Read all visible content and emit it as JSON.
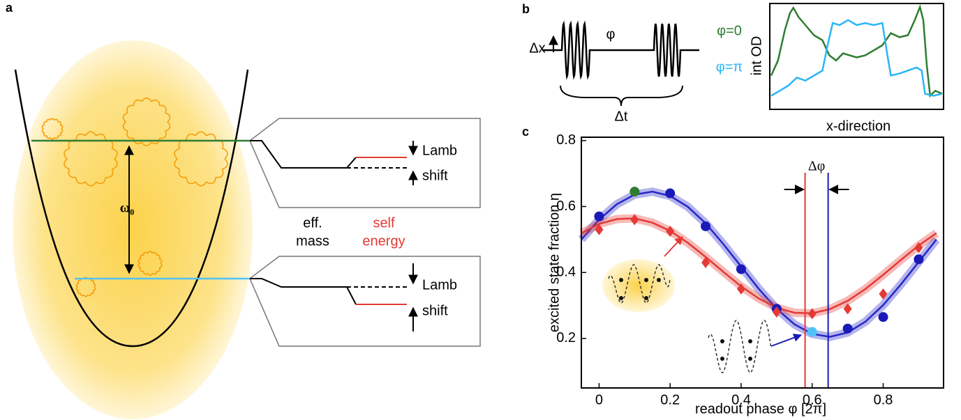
{
  "panel_a": {
    "label": "a",
    "omega": "ω₀",
    "upper": {
      "label_1": "Lamb",
      "label_2": "shift"
    },
    "lower": {
      "label_1": "Lamb",
      "label_2": "shift"
    },
    "eff_mass": [
      "eff.",
      "mass"
    ],
    "self_energy": [
      "self",
      "energy"
    ]
  },
  "panel_b": {
    "label": "b",
    "delta_x": "Δx",
    "phi": "φ",
    "delta_t": "Δt",
    "phi0": "φ=0",
    "phipi": "φ=π",
    "inset": {
      "ylabel": "int OD",
      "xlabel": "x-direction",
      "series": [
        {
          "color": "#2e7d32",
          "x": [
            0,
            0.04,
            0.08,
            0.11,
            0.13,
            0.16,
            0.2,
            0.25,
            0.3,
            0.34,
            0.38,
            0.42,
            0.46,
            0.5,
            0.55,
            0.6,
            0.65,
            0.7,
            0.75,
            0.8,
            0.84,
            0.87,
            0.89,
            0.91,
            0.93,
            0.96,
            1
          ],
          "values": [
            0.3,
            0.45,
            0.75,
            0.92,
            0.97,
            0.88,
            0.8,
            0.7,
            0.65,
            0.5,
            0.45,
            0.52,
            0.5,
            0.48,
            0.5,
            0.55,
            0.6,
            0.72,
            0.68,
            0.7,
            0.85,
            0.98,
            0.85,
            0.4,
            0.1,
            0.15,
            0.12
          ]
        },
        {
          "color": "#29b6f6",
          "x": [
            0,
            0.05,
            0.1,
            0.15,
            0.2,
            0.25,
            0.3,
            0.33,
            0.36,
            0.4,
            0.45,
            0.5,
            0.55,
            0.6,
            0.65,
            0.68,
            0.7,
            0.75,
            0.8,
            0.85,
            0.88,
            0.9,
            0.95,
            1
          ],
          "values": [
            0.1,
            0.15,
            0.2,
            0.28,
            0.25,
            0.3,
            0.35,
            0.6,
            0.82,
            0.8,
            0.85,
            0.8,
            0.82,
            0.8,
            0.82,
            0.5,
            0.3,
            0.32,
            0.35,
            0.38,
            0.35,
            0.12,
            0.1,
            0.12
          ]
        }
      ]
    }
  },
  "chart_data": {
    "type": "scatter",
    "label": "c",
    "xlabel": "readout phase φ [2π]",
    "ylabel": "excited state fraction η",
    "xlim": [
      -0.05,
      0.97
    ],
    "ylim": [
      0.05,
      0.81
    ],
    "xticks": [
      0,
      0.2,
      0.4,
      0.6,
      0.8
    ],
    "yticks": [
      0.2,
      0.4,
      0.6,
      0.8
    ],
    "series": [
      {
        "color": "#1a1ab8",
        "marker": "circle",
        "x": [
          0,
          0.1,
          0.2,
          0.3,
          0.4,
          0.5,
          0.6,
          0.7,
          0.8,
          0.9
        ],
        "values": [
          0.57,
          0.645,
          0.64,
          0.54,
          0.41,
          0.29,
          0.22,
          0.23,
          0.265,
          0.44
        ],
        "point_colors": [
          "#1a1ab8",
          "#2e7d32",
          "#1a1ab8",
          "#1a1ab8",
          "#1a1ab8",
          "#1a1ab8",
          "#4fc3f7",
          "#1a1ab8",
          "#1a1ab8",
          "#1a1ab8"
        ]
      },
      {
        "color": "#e53935",
        "marker": "diamond",
        "x": [
          0,
          0.1,
          0.2,
          0.3,
          0.4,
          0.5,
          0.6,
          0.7,
          0.8,
          0.9
        ],
        "values": [
          0.53,
          0.56,
          0.525,
          0.43,
          0.35,
          0.28,
          0.275,
          0.29,
          0.335,
          0.475
        ]
      }
    ],
    "fits": [
      {
        "color": "#2727c8",
        "x": [
          -0.05,
          0,
          0.05,
          0.1,
          0.15,
          0.2,
          0.25,
          0.3,
          0.35,
          0.4,
          0.45,
          0.5,
          0.55,
          0.6,
          0.65,
          0.7,
          0.75,
          0.8,
          0.85,
          0.9,
          0.95
        ],
        "values": [
          0.5,
          0.56,
          0.607,
          0.636,
          0.645,
          0.632,
          0.599,
          0.549,
          0.486,
          0.418,
          0.35,
          0.29,
          0.243,
          0.214,
          0.205,
          0.218,
          0.251,
          0.301,
          0.364,
          0.432,
          0.5
        ]
      },
      {
        "color": "#e53935",
        "x": [
          -0.05,
          0,
          0.05,
          0.1,
          0.15,
          0.2,
          0.25,
          0.3,
          0.35,
          0.4,
          0.45,
          0.5,
          0.55,
          0.6,
          0.65,
          0.7,
          0.75,
          0.8,
          0.85,
          0.9,
          0.95
        ],
        "values": [
          0.519,
          0.547,
          0.562,
          0.564,
          0.551,
          0.526,
          0.49,
          0.447,
          0.402,
          0.358,
          0.321,
          0.293,
          0.278,
          0.276,
          0.289,
          0.314,
          0.35,
          0.393,
          0.438,
          0.482,
          0.519
        ]
      }
    ],
    "vlines": [
      {
        "x": 0.58,
        "color": "#e53935"
      },
      {
        "x": 0.645,
        "color": "#1a1ab8"
      }
    ],
    "delta_phi": "Δφ"
  }
}
